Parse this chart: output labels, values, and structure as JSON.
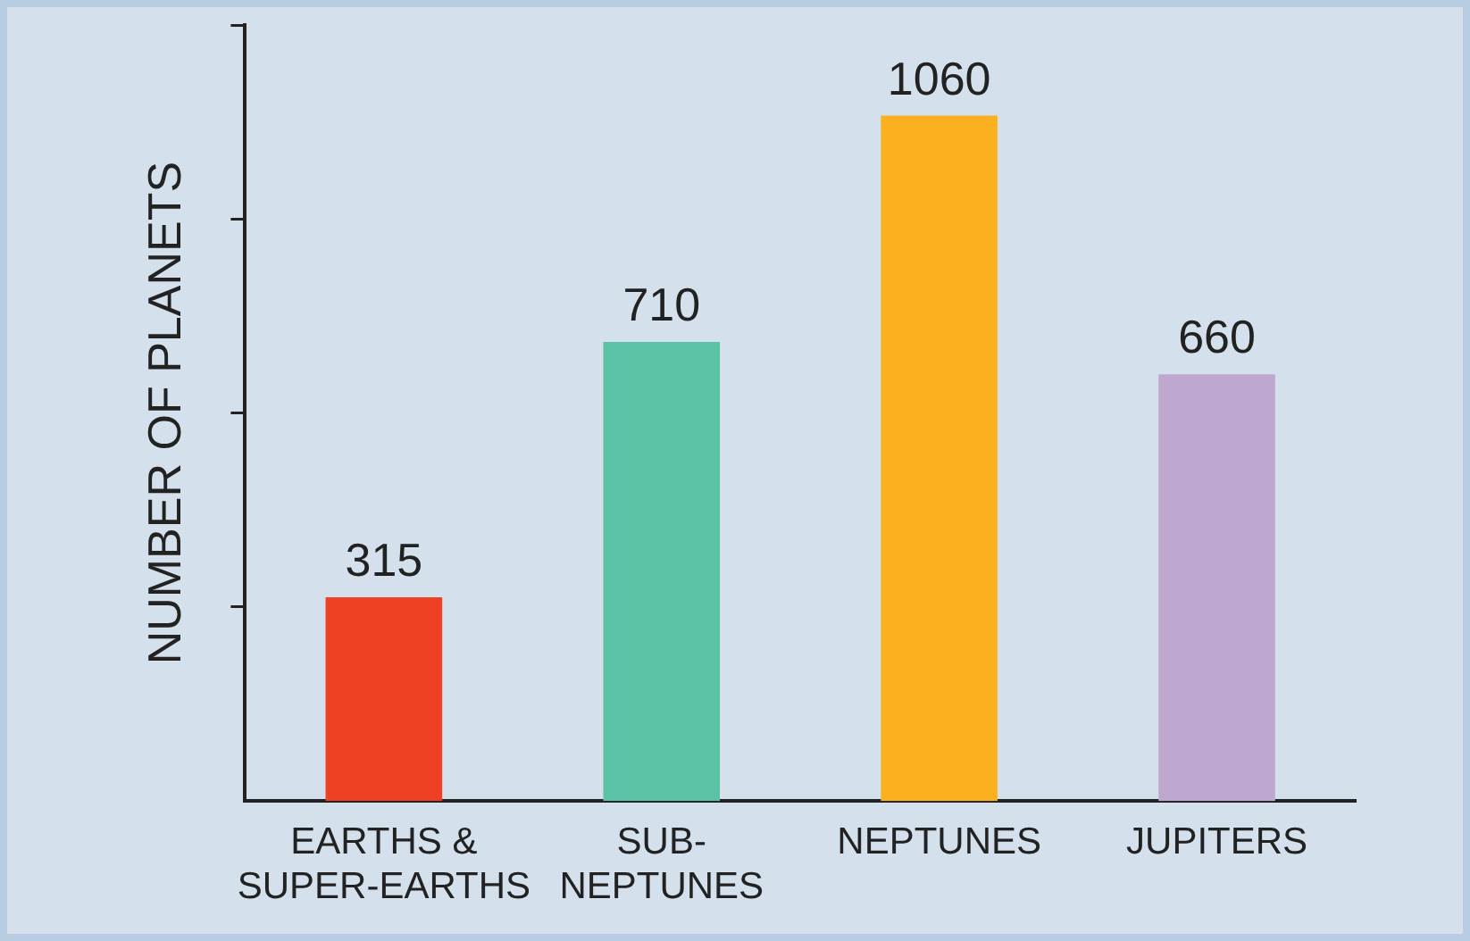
{
  "chart_data": {
    "type": "bar",
    "ylabel": "NUMBER OF PLANETS",
    "categories": [
      "EARTHS &\nSUPER-EARTHS",
      "SUB-\nNEPTUNES",
      "NEPTUNES",
      "JUPITERS"
    ],
    "values": [
      315,
      710,
      1060,
      660
    ],
    "colors": [
      "#ee4023",
      "#5bc2a5",
      "#fbb01f",
      "#bea8d0"
    ],
    "ylim": [
      0,
      1200
    ],
    "yticks": [
      {
        "value": 300,
        "label": null
      },
      {
        "value": 600,
        "label": null
      },
      {
        "value": 900,
        "label": null
      },
      {
        "value": 1200,
        "label": null
      }
    ],
    "tick_labels": "x",
    "grid": false,
    "legend": false,
    "data_labels": true
  }
}
